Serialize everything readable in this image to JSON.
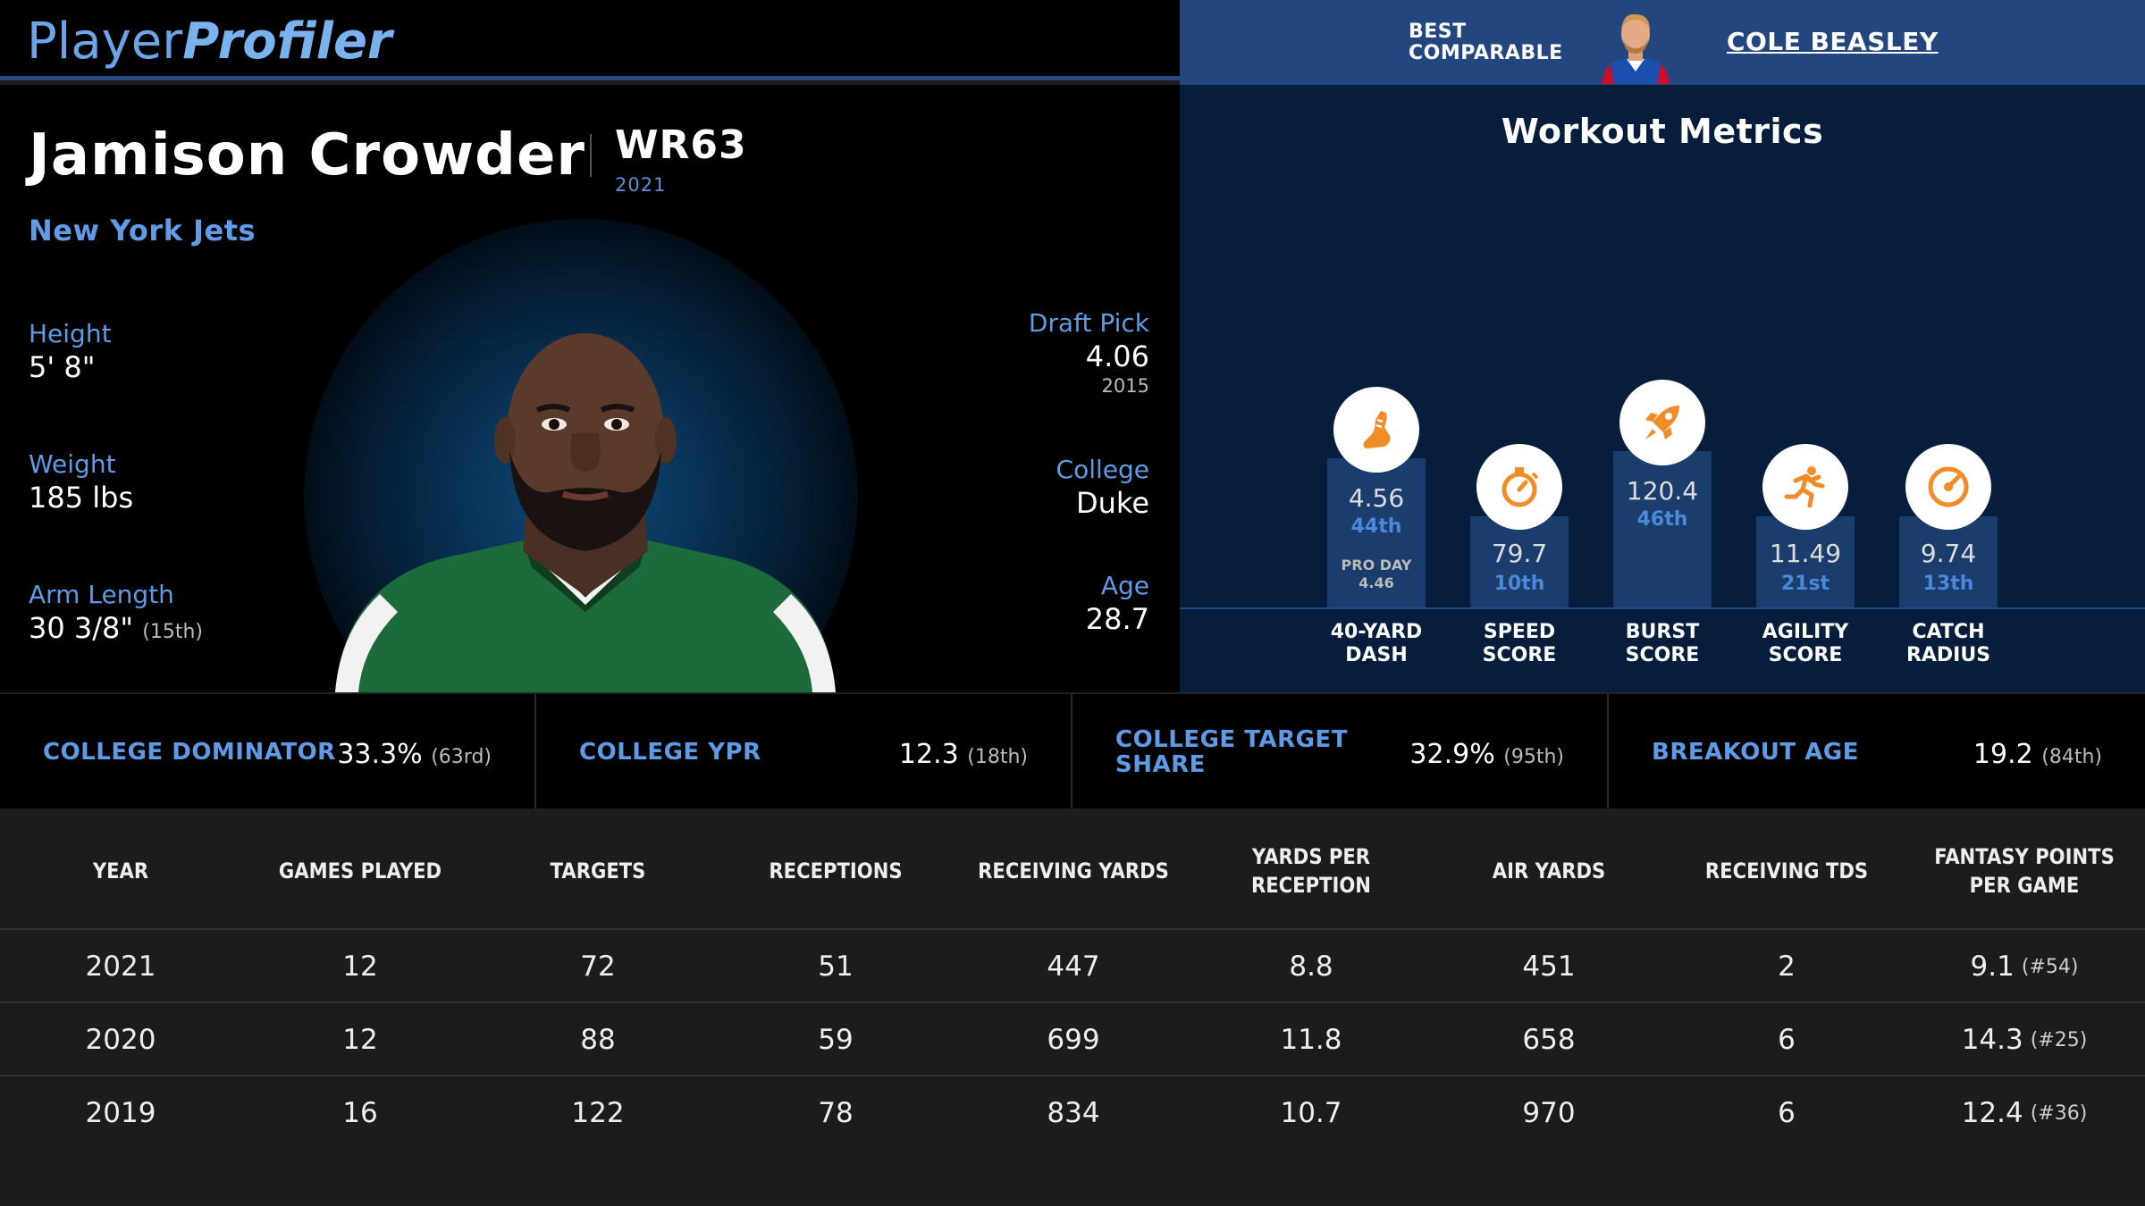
{
  "header": {
    "logo_part1": "Player",
    "logo_part2": "Profiler",
    "best_comparable_line1": "BEST",
    "best_comparable_line2": "COMPARABLE",
    "comparable_name": "COLE BEASLEY"
  },
  "player": {
    "name": "Jamison Crowder",
    "position_rank": "WR63",
    "season": "2021",
    "team": "New York Jets",
    "height_label": "Height",
    "height": "5' 8\"",
    "weight_label": "Weight",
    "weight": "185 lbs",
    "arm_label": "Arm Length",
    "arm": "30 3/8\"",
    "arm_rank": "(15th)",
    "draft_label": "Draft Pick",
    "draft_pick": "4.06",
    "draft_year": "2015",
    "college_label": "College",
    "college": "Duke",
    "age_label": "Age",
    "age": "28.7"
  },
  "workout": {
    "title": "Workout Metrics",
    "metrics": [
      {
        "label1": "40-YARD",
        "label2": "DASH",
        "value": "4.56",
        "percentile": "44th",
        "pro_day_label": "PRO DAY",
        "pro_day": "4.46",
        "icon": "shoe-icon"
      },
      {
        "label1": "SPEED",
        "label2": "SCORE",
        "value": "79.7",
        "percentile": "10th",
        "icon": "stopwatch-icon"
      },
      {
        "label1": "BURST",
        "label2": "SCORE",
        "value": "120.4",
        "percentile": "46th",
        "icon": "rocket-icon"
      },
      {
        "label1": "AGILITY",
        "label2": "SCORE",
        "value": "11.49",
        "percentile": "21st",
        "icon": "runner-icon"
      },
      {
        "label1": "CATCH",
        "label2": "RADIUS",
        "value": "9.74",
        "percentile": "13th",
        "icon": "target-icon"
      }
    ]
  },
  "college_stats": [
    {
      "label": "COLLEGE DOMINATOR",
      "value": "33.3%",
      "rank": "(63rd)"
    },
    {
      "label": "COLLEGE YPR",
      "value": "12.3",
      "rank": "(18th)"
    },
    {
      "label": "COLLEGE TARGET SHARE",
      "value": "32.9%",
      "rank": "(95th)"
    },
    {
      "label": "BREAKOUT AGE",
      "value": "19.2",
      "rank": "(84th)"
    }
  ],
  "table": {
    "headers": [
      "YEAR",
      "GAMES PLAYED",
      "TARGETS",
      "RECEPTIONS",
      "RECEIVING YARDS",
      "YARDS PER RECEPTION",
      "AIR YARDS",
      "RECEIVING TDS",
      "FANTASY POINTS PER GAME"
    ],
    "rows": [
      [
        "2021",
        "12",
        "72",
        "51",
        "447",
        "8.8",
        "451",
        "2",
        "9.1",
        "(#54)"
      ],
      [
        "2020",
        "12",
        "88",
        "59",
        "699",
        "11.8",
        "658",
        "6",
        "14.3",
        "(#25)"
      ],
      [
        "2019",
        "16",
        "122",
        "78",
        "834",
        "10.7",
        "970",
        "6",
        "12.4",
        "(#36)"
      ]
    ]
  },
  "colors": {
    "accent_blue": "#5e9be6",
    "header_blue": "#23467e",
    "icon_orange": "#f28c28",
    "bar_blue": "#1b3d6e"
  }
}
